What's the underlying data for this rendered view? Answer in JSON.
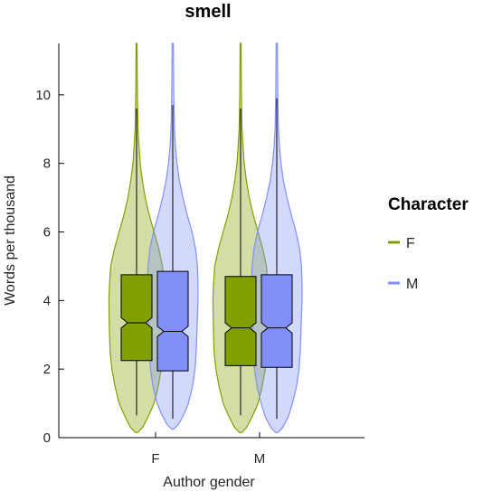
{
  "chart_data": {
    "type": "violin",
    "title": "smell",
    "xlabel": "Author gender",
    "ylabel": "Words per thousand",
    "categories": [
      "F",
      "M"
    ],
    "ylim": [
      0,
      11.5
    ],
    "yticks": [
      0,
      2,
      4,
      6,
      8,
      10
    ],
    "legend": {
      "title": "Character",
      "position": "right"
    },
    "series": [
      {
        "name": "F",
        "color": "#80a000",
        "fill": "rgba(128,160,0,0.35)",
        "box_fill": "#80a000",
        "groups": [
          {
            "category": "F",
            "q1": 2.25,
            "median": 3.35,
            "q3": 4.75,
            "notch_low": 3.2,
            "notch_high": 3.5,
            "whisker_low": 0.65,
            "whisker_high": 9.6,
            "violin_max": 11.5,
            "density": [
              [
                0.15,
                0.1
              ],
              [
                0.3,
                0.5
              ],
              [
                0.6,
                0.95
              ],
              [
                1.0,
                1.45
              ],
              [
                1.5,
                1.8
              ],
              [
                2.0,
                2.05
              ],
              [
                2.5,
                2.2
              ],
              [
                3.0,
                2.25
              ],
              [
                3.5,
                2.28
              ],
              [
                4.0,
                2.3
              ],
              [
                4.5,
                2.25
              ],
              [
                5.0,
                2.15
              ],
              [
                5.5,
                1.85
              ],
              [
                6.0,
                1.45
              ],
              [
                6.5,
                1.05
              ],
              [
                7.0,
                0.72
              ],
              [
                7.5,
                0.48
              ],
              [
                8.0,
                0.3
              ],
              [
                8.5,
                0.2
              ],
              [
                9.0,
                0.12
              ],
              [
                10.0,
                0.07
              ],
              [
                11.5,
                0.04
              ]
            ]
          },
          {
            "category": "M",
            "q1": 2.1,
            "median": 3.2,
            "q3": 4.7,
            "notch_low": 3.05,
            "notch_high": 3.35,
            "whisker_low": 0.65,
            "whisker_high": 9.6,
            "violin_max": 11.5,
            "density": [
              [
                0.15,
                0.1
              ],
              [
                0.3,
                0.5
              ],
              [
                0.6,
                0.95
              ],
              [
                1.0,
                1.45
              ],
              [
                1.5,
                1.8
              ],
              [
                2.0,
                2.05
              ],
              [
                2.5,
                2.2
              ],
              [
                3.0,
                2.25
              ],
              [
                3.5,
                2.28
              ],
              [
                4.0,
                2.3
              ],
              [
                4.5,
                2.25
              ],
              [
                5.0,
                2.15
              ],
              [
                5.5,
                1.85
              ],
              [
                6.0,
                1.45
              ],
              [
                6.5,
                1.05
              ],
              [
                7.0,
                0.72
              ],
              [
                7.5,
                0.48
              ],
              [
                8.0,
                0.3
              ],
              [
                8.5,
                0.2
              ],
              [
                9.0,
                0.12
              ],
              [
                10.0,
                0.07
              ],
              [
                11.5,
                0.04
              ]
            ]
          }
        ]
      },
      {
        "name": "M",
        "color": "#8090f8",
        "fill": "rgba(128,144,248,0.35)",
        "box_fill": "#8090f8",
        "groups": [
          {
            "category": "F",
            "q1": 1.95,
            "median": 3.1,
            "q3": 4.85,
            "notch_low": 2.95,
            "notch_high": 3.25,
            "whisker_low": 0.55,
            "whisker_high": 9.7,
            "violin_max": 11.5,
            "density": [
              [
                0.25,
                0.1
              ],
              [
                0.4,
                0.5
              ],
              [
                0.7,
                0.95
              ],
              [
                1.0,
                1.3
              ],
              [
                1.5,
                1.65
              ],
              [
                2.0,
                1.85
              ],
              [
                2.5,
                1.95
              ],
              [
                3.0,
                2.0
              ],
              [
                3.5,
                2.05
              ],
              [
                4.0,
                2.1
              ],
              [
                4.5,
                2.1
              ],
              [
                5.0,
                2.05
              ],
              [
                5.5,
                1.9
              ],
              [
                6.0,
                1.6
              ],
              [
                6.5,
                1.2
              ],
              [
                7.0,
                0.85
              ],
              [
                7.5,
                0.55
              ],
              [
                8.0,
                0.35
              ],
              [
                8.5,
                0.22
              ],
              [
                9.0,
                0.14
              ],
              [
                10.0,
                0.08
              ],
              [
                11.5,
                0.05
              ]
            ]
          },
          {
            "category": "M",
            "q1": 2.05,
            "median": 3.2,
            "q3": 4.75,
            "notch_low": 3.05,
            "notch_high": 3.35,
            "whisker_low": 0.55,
            "whisker_high": 9.9,
            "violin_max": 11.5,
            "density": [
              [
                0.15,
                0.1
              ],
              [
                0.3,
                0.5
              ],
              [
                0.6,
                0.95
              ],
              [
                1.0,
                1.3
              ],
              [
                1.5,
                1.65
              ],
              [
                2.0,
                1.85
              ],
              [
                2.5,
                1.95
              ],
              [
                3.0,
                2.0
              ],
              [
                3.5,
                2.05
              ],
              [
                4.0,
                2.1
              ],
              [
                4.5,
                2.1
              ],
              [
                5.0,
                2.05
              ],
              [
                5.5,
                1.9
              ],
              [
                6.0,
                1.6
              ],
              [
                6.5,
                1.2
              ],
              [
                7.0,
                0.85
              ],
              [
                7.5,
                0.55
              ],
              [
                8.0,
                0.35
              ],
              [
                8.5,
                0.22
              ],
              [
                9.0,
                0.14
              ],
              [
                10.0,
                0.08
              ],
              [
                11.5,
                0.05
              ]
            ]
          }
        ]
      }
    ]
  }
}
